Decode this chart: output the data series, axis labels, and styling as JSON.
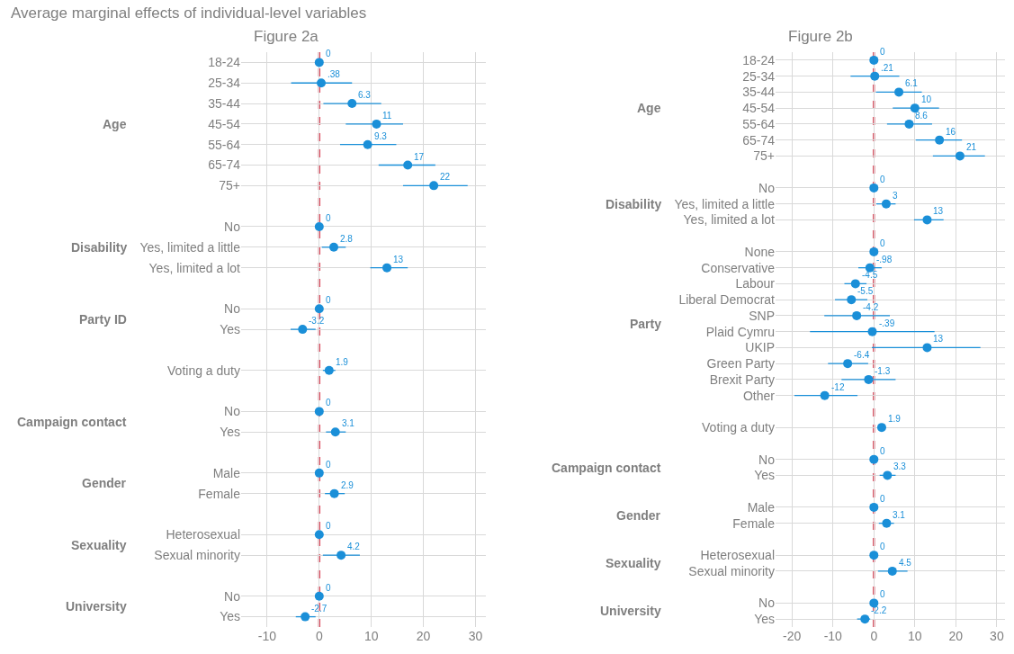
{
  "chart_data": [
    {
      "type": "scatter",
      "orientation": "horizontal",
      "title": "Figure 2a",
      "annotations": [
        "Average marginal effects of individual-level variables"
      ],
      "categories": [
        "18-24",
        "25-34",
        "35-44",
        "45-54",
        "55-64",
        "65-74",
        "75+",
        null,
        "No",
        "Yes, limited a little",
        "Yes, limited a lot",
        null,
        "No",
        "Yes",
        null,
        "Voting a duty",
        null,
        "No",
        "Yes",
        null,
        "Male",
        "Female",
        null,
        "Heterosexual",
        "Sexual minority",
        null,
        "No",
        "Yes"
      ],
      "y2_categories": [
        null,
        null,
        null,
        "Age",
        null,
        null,
        null,
        null,
        null,
        "Disability",
        null,
        null,
        "Party ID",
        null,
        null,
        null,
        null,
        "Campaign contact",
        null,
        null,
        "Gender",
        null,
        null,
        "Sexuality",
        null,
        null,
        "University",
        null
      ],
      "series": [
        {
          "color": "#1a8fd8",
          "values": [
            0,
            0.38,
            6.3,
            11,
            9.3,
            17,
            22,
            null,
            0,
            2.8,
            13,
            null,
            0,
            -3.2,
            null,
            1.9,
            null,
            0,
            3.1,
            null,
            0,
            2.9,
            null,
            0,
            4.2,
            null,
            0,
            -2.7
          ],
          "errors": [
            null,
            [
              -5.4,
              6.3
            ],
            [
              0.8,
              11.9
            ],
            [
              5.1,
              16.1
            ],
            [
              4,
              14.8
            ],
            [
              11.4,
              22.3
            ],
            [
              16.1,
              28.5
            ],
            null,
            null,
            [
              0.5,
              5.1
            ],
            [
              9.8,
              17
            ],
            null,
            null,
            [
              -5.5,
              -0.7
            ],
            null,
            [
              0.7,
              3.1
            ],
            null,
            null,
            [
              1.3,
              5.1
            ],
            null,
            null,
            [
              1.1,
              4.9
            ],
            null,
            null,
            [
              0.7,
              7.8
            ],
            null,
            null,
            [
              -4.5,
              -0.7
            ]
          ],
          "value_labels": [
            "0",
            ".38",
            "6.3",
            "11",
            "9.3",
            "17",
            "22",
            null,
            "0",
            "2.8",
            "13",
            null,
            "0",
            "-3.2",
            null,
            "1.9",
            null,
            "0",
            "3.1",
            null,
            "0",
            "2.9",
            null,
            "0",
            "4.2",
            null,
            "0",
            "-2.7"
          ]
        }
      ],
      "xlim": [
        -15,
        32
      ],
      "xticks": [
        -10,
        0,
        10,
        20,
        30
      ],
      "ref_lines": [
        {
          "axis": "x",
          "value": 0,
          "color": "#d7263d",
          "line_style": "dashed"
        }
      ],
      "grid": true,
      "marker": "circle"
    },
    {
      "type": "scatter",
      "orientation": "horizontal",
      "title": "Figure 2b",
      "categories": [
        "18-24",
        "25-34",
        "35-44",
        "45-54",
        "55-64",
        "65-74",
        "75+",
        null,
        "No",
        "Yes, limited a little",
        "Yes, limited a lot",
        null,
        "None",
        "Conservative",
        "Labour",
        "Liberal Democrat",
        "SNP",
        "Plaid Cymru",
        "UKIP",
        "Green Party",
        "Brexit Party",
        "Other",
        null,
        "Voting a duty",
        null,
        "No",
        "Yes",
        null,
        "Male",
        "Female",
        null,
        "Heterosexual",
        "Sexual minority",
        null,
        "No",
        "Yes"
      ],
      "y2_categories": [
        null,
        null,
        null,
        "Age",
        null,
        null,
        null,
        null,
        null,
        "Disability",
        null,
        null,
        null,
        null,
        null,
        null,
        "Party",
        null,
        null,
        null,
        null,
        null,
        null,
        null,
        null,
        "Campaign contact",
        null,
        null,
        "Gender",
        null,
        null,
        "Sexuality",
        null,
        null,
        "University",
        null
      ],
      "series": [
        {
          "color": "#1a8fd8",
          "values": [
            0,
            0.21,
            6.1,
            10,
            8.6,
            16,
            21,
            null,
            0,
            3,
            13,
            null,
            0,
            -0.98,
            -4.5,
            -5.5,
            -4.2,
            -0.39,
            13,
            -6.4,
            -1.3,
            -12,
            null,
            1.9,
            null,
            0,
            3.3,
            null,
            0,
            3.1,
            null,
            0,
            4.5,
            null,
            0,
            -2.2
          ],
          "errors": [
            null,
            [
              -5.7,
              6.2
            ],
            [
              0.5,
              11.7
            ],
            [
              4.6,
              15.9
            ],
            [
              3.2,
              14.2
            ],
            [
              10.2,
              21.5
            ],
            [
              14.4,
              27.1
            ],
            null,
            null,
            [
              0.6,
              5.3
            ],
            [
              9.8,
              17
            ],
            null,
            null,
            [
              -3.8,
              1.9
            ],
            [
              -7.2,
              -1.8
            ],
            [
              -9.5,
              -1.6
            ],
            [
              -12.1,
              3.9
            ],
            [
              -15.6,
              14.8
            ],
            [
              -0.5,
              26
            ],
            [
              -11.2,
              -1.4
            ],
            [
              -7.9,
              5.3
            ],
            [
              -19.4,
              -4
            ],
            null,
            [
              1.1,
              2.9
            ],
            null,
            null,
            [
              1.4,
              5.3
            ],
            null,
            null,
            [
              1.2,
              4.9
            ],
            null,
            null,
            [
              1,
              8.2
            ],
            null,
            null,
            [
              -4.1,
              -0.9
            ]
          ],
          "value_labels": [
            "0",
            ".21",
            "6.1",
            "10",
            "8.6",
            "16",
            "21",
            null,
            "0",
            "3",
            "13",
            null,
            "0",
            "-.98",
            "-4.5",
            "-5.5",
            "-4.2",
            "-.39",
            "13",
            "-6.4",
            "-1.3",
            "-12",
            null,
            "1.9",
            null,
            "0",
            "3.3",
            null,
            "0",
            "3.1",
            null,
            "0",
            "4.5",
            null,
            "0",
            "-2.2"
          ]
        }
      ],
      "xlim": [
        -24,
        32
      ],
      "xticks": [
        -20,
        -10,
        0,
        10,
        20,
        30
      ],
      "ref_lines": [
        {
          "axis": "x",
          "value": 0,
          "color": "#d7263d",
          "line_style": "dashed"
        }
      ],
      "grid": true,
      "marker": "circle"
    }
  ]
}
